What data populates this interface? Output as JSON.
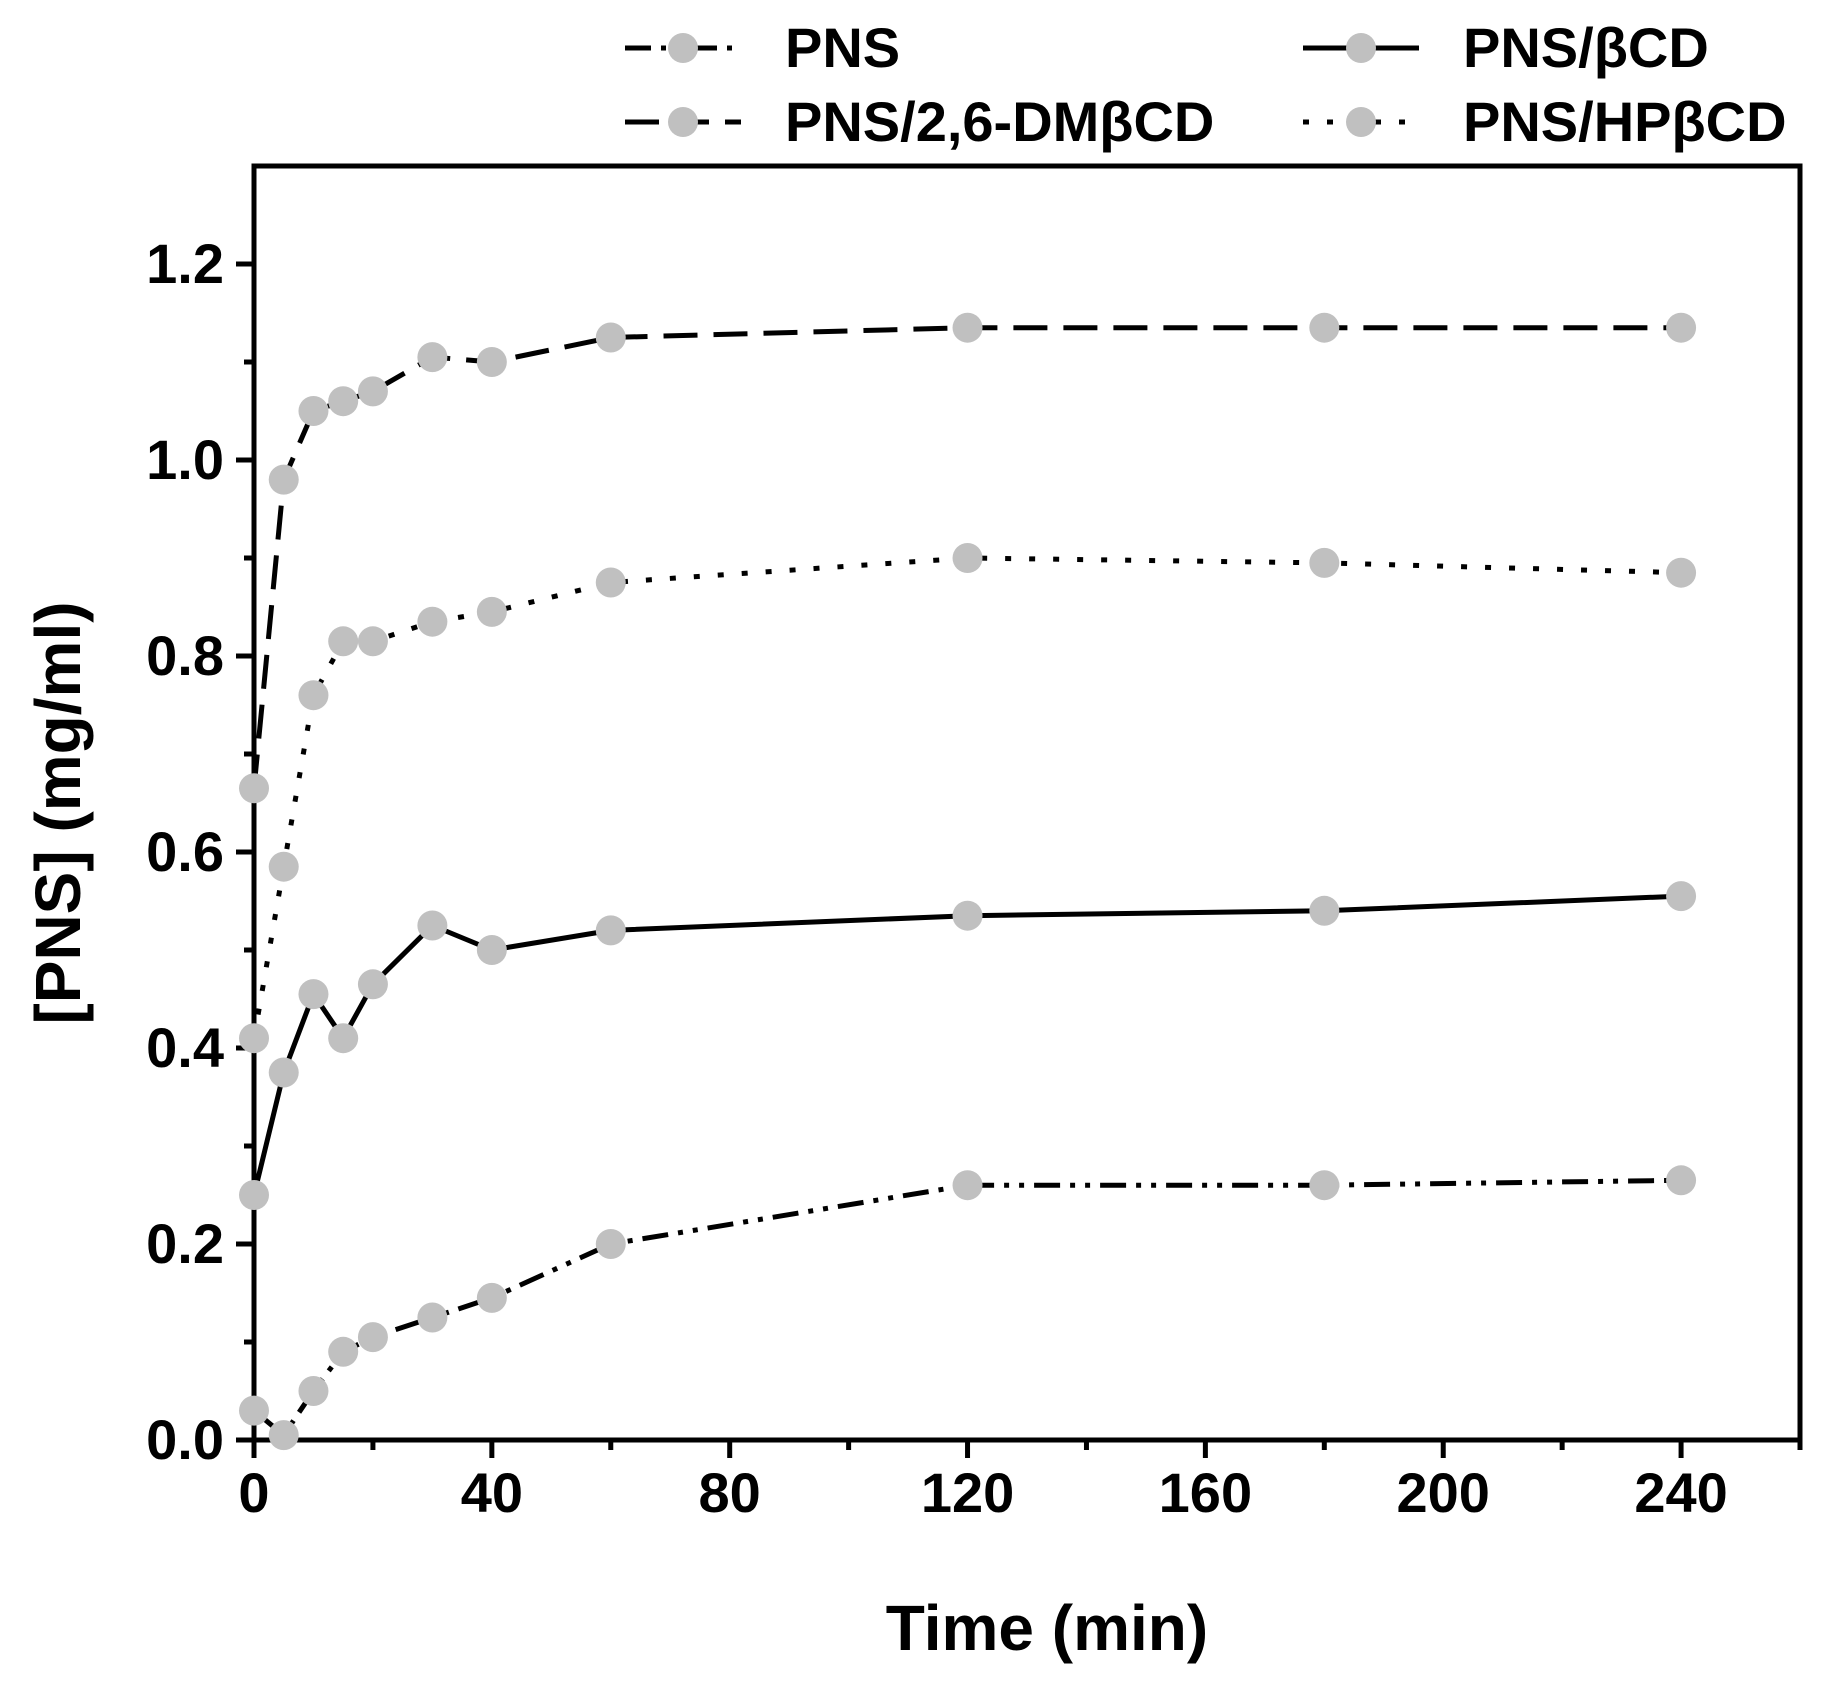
{
  "chart_data": {
    "type": "line",
    "title": "",
    "xlabel": "Time (min)",
    "ylabel": "[PNS] (mg/ml)",
    "xlim": [
      0,
      260
    ],
    "ylim": [
      0,
      1.3
    ],
    "xticks": [
      0,
      40,
      80,
      120,
      160,
      200,
      240
    ],
    "xtick_labels": [
      "0",
      "40",
      "80",
      "120",
      "160",
      "200",
      "240"
    ],
    "xminor": [
      20,
      60,
      100,
      140,
      180,
      220,
      260
    ],
    "yticks": [
      0,
      0.2,
      0.4,
      0.6,
      0.8,
      1.0,
      1.2
    ],
    "ytick_labels": [
      "0.0",
      "0.2",
      "0.4",
      "0.6",
      "0.8",
      "1.0",
      "1.2"
    ],
    "yminor": [
      0.1,
      0.3,
      0.5,
      0.7,
      0.9,
      1.1
    ],
    "grid": false,
    "legend_position": "top",
    "marker_color": "#c0c0c0",
    "line_color": "#000000",
    "x": [
      0,
      5,
      10,
      15,
      20,
      30,
      40,
      60,
      120,
      180,
      240
    ],
    "series": [
      {
        "name": "PNS",
        "dash": "dash-dot-dot",
        "values": [
          0.03,
          0.005,
          0.05,
          0.09,
          0.105,
          0.125,
          0.145,
          0.2,
          0.26,
          0.26,
          0.265
        ]
      },
      {
        "name": "PNS/βCD",
        "dash": "solid",
        "values": [
          0.25,
          0.375,
          0.455,
          0.41,
          0.465,
          0.525,
          0.5,
          0.52,
          0.535,
          0.54,
          0.555
        ]
      },
      {
        "name": "PNS/2,6-DMβCD",
        "dash": "dash",
        "values": [
          0.665,
          0.98,
          1.05,
          1.06,
          1.07,
          1.105,
          1.1,
          1.125,
          1.135,
          1.135,
          1.135
        ]
      },
      {
        "name": "PNS/HPβCD",
        "dash": "dot",
        "values": [
          0.41,
          0.585,
          0.76,
          0.815,
          0.815,
          0.835,
          0.845,
          0.875,
          0.9,
          0.895,
          0.885
        ]
      }
    ]
  }
}
